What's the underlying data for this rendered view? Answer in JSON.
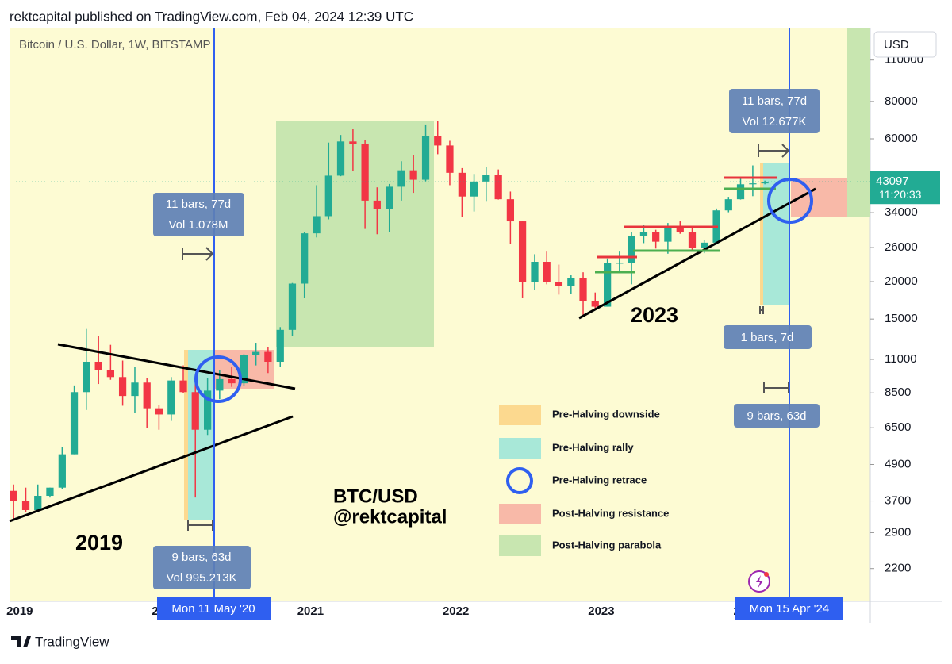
{
  "header": {
    "text": "rektcapital published on TradingView.com, Feb 04, 2024 12:39 UTC"
  },
  "chart_data": {
    "type": "candlestick",
    "title": "Bitcoin / U.S. Dollar, 1W, BITSTAMP",
    "currency": "USD",
    "log_scale": true,
    "grid": false,
    "up_color": "#22ab94",
    "down_color": "#f23645",
    "ylim": [
      1710,
      141000
    ],
    "yticks": [
      2200,
      2900,
      3700,
      4900,
      6500,
      8500,
      11000,
      15000,
      20000,
      26000,
      34000,
      60000,
      80000,
      110000
    ],
    "xlim": [
      2018.93,
      2024.85
    ],
    "xticks": [
      2019,
      2020,
      2021,
      2022,
      2023,
      2024
    ],
    "x": [
      2018.958,
      2019.042,
      2019.125,
      2019.208,
      2019.292,
      2019.375,
      2019.458,
      2019.542,
      2019.625,
      2019.708,
      2019.792,
      2019.875,
      2019.958,
      2020.042,
      2020.125,
      2020.208,
      2020.292,
      2020.375,
      2020.458,
      2020.542,
      2020.625,
      2020.708,
      2020.792,
      2020.875,
      2020.958,
      2021.042,
      2021.125,
      2021.208,
      2021.292,
      2021.375,
      2021.458,
      2021.542,
      2021.625,
      2021.708,
      2021.792,
      2021.875,
      2021.958,
      2022.042,
      2022.125,
      2022.208,
      2022.292,
      2022.375,
      2022.458,
      2022.542,
      2022.625,
      2022.708,
      2022.792,
      2022.875,
      2022.958,
      2023.042,
      2023.125,
      2023.208,
      2023.292,
      2023.375,
      2023.458,
      2023.542,
      2023.625,
      2023.708,
      2023.792,
      2023.875,
      2023.958,
      2024.042,
      2024.125
    ],
    "open": [
      4000,
      3700,
      3450,
      3850,
      4100,
      5300,
      8550,
      10800,
      10100,
      9600,
      8300,
      9200,
      7550,
      7200,
      9350,
      8550,
      6400,
      8650,
      9450,
      9150,
      11350,
      11650,
      10800,
      13800,
      19700,
      29000,
      33100,
      45200,
      58800,
      57800,
      37300,
      35000,
      41500,
      47100,
      43800,
      61300,
      57000,
      46200,
      38500,
      43200,
      45500,
      37700,
      31800,
      19900,
      23300,
      20000,
      19400,
      20500,
      17200,
      16500,
      23100,
      23100,
      28500,
      29300,
      27200,
      30500,
      29200,
      26000,
      27000,
      34600,
      37700,
      42300,
      42600
    ],
    "high": [
      4200,
      4100,
      4200,
      4100,
      5600,
      9000,
      13900,
      13200,
      12300,
      10900,
      10400,
      9500,
      7750,
      9600,
      10500,
      9200,
      9500,
      10100,
      10400,
      11450,
      12500,
      12100,
      14100,
      19800,
      29300,
      42000,
      58300,
      61800,
      64900,
      59500,
      41300,
      42400,
      50500,
      52900,
      67000,
      69000,
      59100,
      47900,
      45800,
      48200,
      47400,
      40000,
      31900,
      24700,
      25200,
      22800,
      21000,
      21500,
      18400,
      23900,
      25200,
      29200,
      31000,
      29800,
      31400,
      31800,
      30200,
      27500,
      35100,
      38400,
      44700,
      48900,
      43500
    ],
    "low": [
      3200,
      3400,
      3400,
      3800,
      4050,
      5300,
      7450,
      9100,
      9400,
      7700,
      7300,
      6500,
      6400,
      6850,
      8500,
      3800,
      6150,
      8100,
      8900,
      8950,
      10500,
      9900,
      10400,
      13200,
      17600,
      28100,
      32300,
      45000,
      47000,
      30000,
      28800,
      29300,
      37300,
      39600,
      43300,
      53300,
      42000,
      32900,
      34300,
      37200,
      37600,
      26700,
      17600,
      18800,
      19600,
      18100,
      18200,
      15500,
      16300,
      16500,
      21400,
      19600,
      26900,
      25800,
      24800,
      28900,
      25200,
      24900,
      26600,
      34100,
      37600,
      38600,
      42300
    ],
    "close": [
      3700,
      3450,
      3850,
      4100,
      5300,
      8550,
      10800,
      10100,
      9600,
      8300,
      9200,
      7550,
      7200,
      9350,
      8550,
      6400,
      8650,
      9450,
      9150,
      11350,
      11650,
      10800,
      13800,
      19700,
      29000,
      33100,
      45200,
      58800,
      57800,
      37300,
      35000,
      41500,
      47100,
      43800,
      61300,
      57000,
      46200,
      38500,
      43200,
      45500,
      37700,
      31800,
      19900,
      23300,
      20000,
      19400,
      20500,
      17200,
      16500,
      23100,
      23100,
      28500,
      29300,
      27200,
      30500,
      29200,
      26000,
      27000,
      34600,
      37700,
      42300,
      42600,
      43097
    ],
    "last_price": 43097,
    "countdown": "11:20:33",
    "annotations": {
      "range_2020": [
        "11 bars, 77d",
        "Vol 1.078M"
      ],
      "range_2024": [
        "11 bars, 77d",
        "Vol 12.677K"
      ],
      "retrace_2020": [
        "9 bars, 63d",
        "Vol 995.213K"
      ],
      "downside_2024": "1 bars, 7d",
      "retrace_2024": "9 bars, 63d",
      "year_2019": "2019",
      "year_2023": "2023",
      "pair": "BTC/USD",
      "author": "@rektcapital",
      "halving_2020": "Mon 11 May '20",
      "halving_2024": "Mon 15 Apr '24"
    },
    "legend": {
      "items": [
        {
          "name": "Pre-Halving downside",
          "color": "#fcd98f"
        },
        {
          "name": "Pre-Halving rally",
          "color": "#a8e8d8"
        },
        {
          "name": "Pre-Halving retrace",
          "color": "#2f5ff0"
        },
        {
          "name": "Post-Halving resistance",
          "color": "#f8b9a8"
        },
        {
          "name": "Post-Halving parabola",
          "color": "#c8e6b0"
        }
      ]
    }
  },
  "footer": {
    "brand": "TradingView"
  }
}
